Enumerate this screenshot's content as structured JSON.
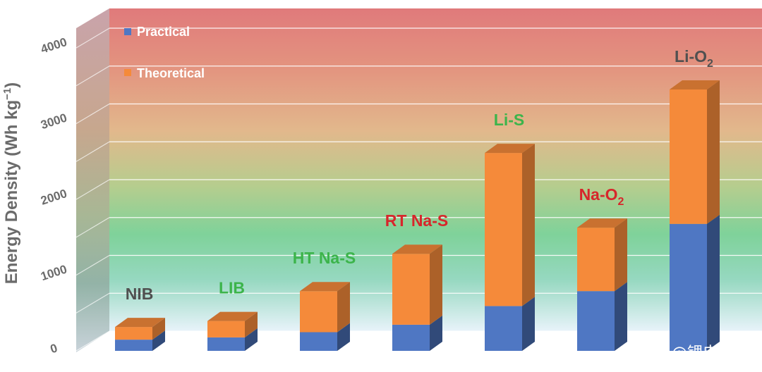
{
  "chart_data": {
    "type": "bar",
    "style": "3d-stacked",
    "categories": [
      "NIB",
      "LIB",
      "HT Na-S",
      "RT Na-S",
      "Li-S",
      "Na-O2",
      "Li-O2"
    ],
    "category_display": [
      {
        "base": "NIB",
        "sub": "",
        "color": "#505050"
      },
      {
        "base": "LIB",
        "sub": "",
        "color": "#3cb44b"
      },
      {
        "base": "HT Na-S",
        "sub": "",
        "color": "#3cb44b"
      },
      {
        "base": "RT Na-S",
        "sub": "",
        "color": "#d7262b"
      },
      {
        "base": "Li-S",
        "sub": "",
        "color": "#3cb44b"
      },
      {
        "base": "Na-O",
        "sub": "2",
        "color": "#d7262b"
      },
      {
        "base": "Li-O",
        "sub": "2",
        "color": "#505050"
      }
    ],
    "series": [
      {
        "name": "Practical",
        "values": [
          150,
          180,
          250,
          350,
          600,
          800,
          1700
        ],
        "color": "#4f77c3"
      },
      {
        "name": "Theoretical",
        "values": [
          320,
          400,
          800,
          1300,
          2650,
          1650,
          3500
        ],
        "color": "#f58a3a"
      }
    ],
    "ylabel": "Energy Density (Wh kg",
    "ylabel_sup": "−1",
    "ylabel_close": ")",
    "ylim": [
      0,
      4000
    ],
    "yticks": [
      0,
      1000,
      2000,
      3000,
      4000
    ],
    "legend_position": "top-left",
    "grid": true
  },
  "watermark": "头条 @锂电百科",
  "colors": {
    "top_red": "#e07b7b",
    "mid_orange": "#e8b48a",
    "mid_green": "#6fcc93",
    "bottom_blue": "#dcecf7",
    "grid": "#ffffff"
  }
}
